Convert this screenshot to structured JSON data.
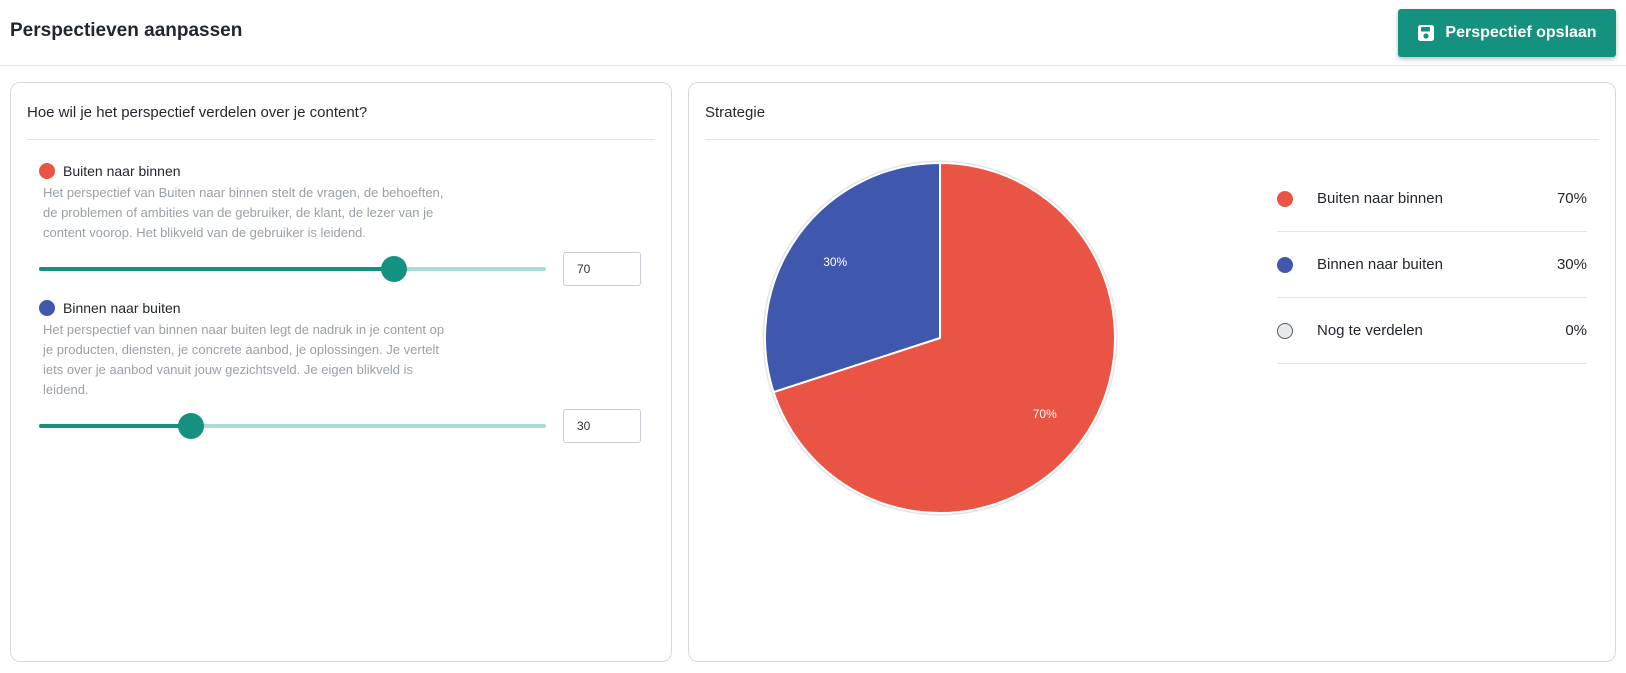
{
  "page": {
    "title": "Perspectieven aanpassen",
    "save_button": {
      "label": "Perspectief opslaan",
      "icon": "save-icon"
    }
  },
  "colors": {
    "accent": "#15917f",
    "outside_in": "#e95444",
    "inside_out": "#3f58ad",
    "unassigned": "#e8e9eb"
  },
  "left_panel": {
    "title": "Hoe wil je het perspectief verdelen over je content?",
    "perspectives": [
      {
        "label": "Buiten naar binnen",
        "description": "Het perspectief van Buiten naar binnen stelt de vragen, de behoeften, de problemen of ambities van de gebruiker, de klant, de lezer van je content voorop. Het blikveld van de gebruiker is leidend.",
        "value": "70",
        "percent": 70
      },
      {
        "label": "Binnen naar buiten",
        "description": "Het perspectief van binnen naar buiten legt de nadruk in je content op je producten, diensten, je concrete aanbod, je oplossingen. Je vertelt iets over je aanbod vanuit jouw gezichtsveld. Je eigen blikveld is leidend.",
        "value": "30",
        "percent": 30
      }
    ]
  },
  "right_panel": {
    "title": "Strategie",
    "legend": [
      {
        "label": "Buiten naar binnen",
        "value": "70%"
      },
      {
        "label": "Binnen naar buiten",
        "value": "30%"
      },
      {
        "label": "Nog te verdelen",
        "value": "0%"
      }
    ]
  },
  "chart_data": {
    "type": "pie",
    "categories": [
      "Buiten naar binnen",
      "Binnen naar buiten",
      "Nog te verdelen"
    ],
    "values": [
      70,
      30,
      0
    ],
    "data_labels": [
      "70%",
      "30%",
      ""
    ],
    "colors": [
      "#e95444",
      "#3f58ad",
      "#e8e9eb"
    ],
    "title": ""
  }
}
